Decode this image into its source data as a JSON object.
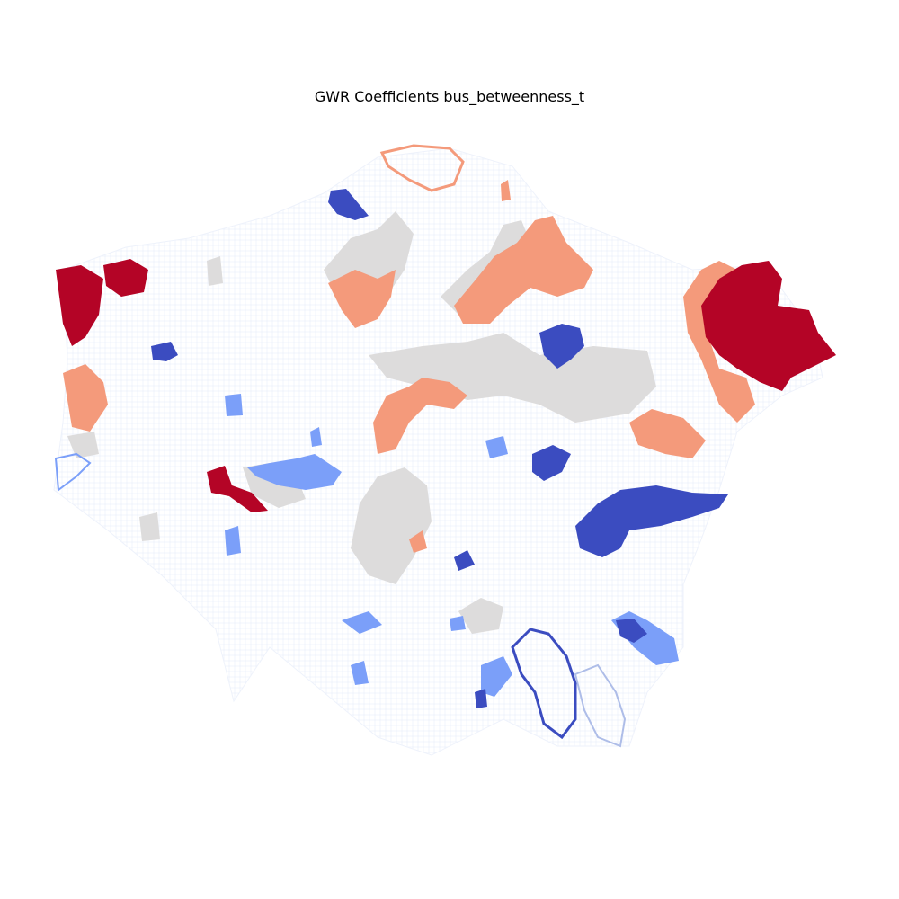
{
  "title": "GWR Coefficients bus_betweenness_t",
  "colors": {
    "strong_negative": "#3b4cc0",
    "negative": "#7b9ff9",
    "weak_negative": "#aebde8",
    "neutral": "#dddcdc",
    "positive": "#f49a7b",
    "strong_positive": "#b40426",
    "base_network": "#e8eefb"
  }
}
